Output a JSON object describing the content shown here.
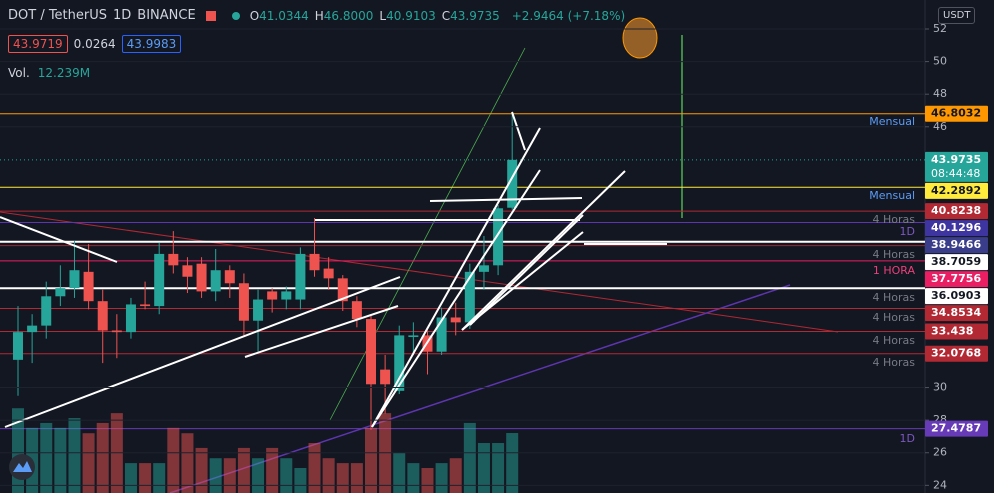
{
  "header": {
    "symbol": "DOT / TetherUS",
    "interval": "1D",
    "exchange": "BINANCE",
    "ohlc": [
      {
        "key": "O",
        "value": "41.0344"
      },
      {
        "key": "H",
        "value": "46.8000"
      },
      {
        "key": "L",
        "value": "40.9103"
      },
      {
        "key": "C",
        "value": "43.9735"
      }
    ],
    "change": "+2.9464 (+7.18%)",
    "bid": "43.9719",
    "spread": "0.0264",
    "ask": "43.9983",
    "volume_label": "Vol.",
    "volume_value": "12.239M",
    "currency": "USDT"
  },
  "chart_data": {
    "type": "candlestick",
    "open": [
      31.7,
      33.4,
      33.8,
      35.6,
      36.1,
      37.1,
      35.3,
      33.5,
      33.4,
      35.1,
      35.0,
      38.2,
      37.5,
      37.6,
      35.9,
      37.2,
      36.4,
      34.1,
      35.9,
      35.4,
      35.4,
      38.2,
      37.3,
      36.7,
      35.3,
      34.2,
      31.1,
      29.8,
      33.1,
      33.2,
      32.2,
      34.3,
      34.0,
      37.1,
      37.5,
      41.0344
    ],
    "high": [
      35.0,
      34.5,
      36.5,
      37.5,
      39.0,
      38.8,
      36.0,
      34.5,
      35.5,
      36.5,
      38.9,
      39.6,
      38.0,
      38.0,
      38.5,
      37.5,
      37.0,
      36.0,
      36.1,
      36.2,
      38.6,
      40.4,
      38.0,
      36.9,
      35.6,
      34.4,
      32.0,
      33.8,
      34.0,
      33.5,
      34.9,
      35.2,
      37.6,
      39.3,
      41.2,
      46.8
    ],
    "low": [
      29.5,
      31.5,
      33.0,
      35.0,
      35.5,
      34.8,
      31.5,
      31.8,
      33.0,
      34.8,
      34.5,
      37.0,
      35.8,
      35.5,
      35.3,
      35.5,
      33.2,
      32.2,
      34.6,
      34.8,
      34.8,
      36.8,
      36.0,
      34.7,
      33.7,
      27.4,
      28.4,
      29.6,
      32.0,
      30.8,
      32.0,
      33.2,
      33.6,
      36.0,
      36.9,
      40.9103
    ],
    "close": [
      33.4,
      33.8,
      35.6,
      36.1,
      37.2,
      35.3,
      33.5,
      33.4,
      35.1,
      35.0,
      38.2,
      37.5,
      36.8,
      35.9,
      37.2,
      36.4,
      34.1,
      35.4,
      35.4,
      35.9,
      38.2,
      37.2,
      36.7,
      35.3,
      34.2,
      30.2,
      30.2,
      33.2,
      33.2,
      32.2,
      34.3,
      34.0,
      37.1,
      37.5,
      41.0,
      43.9735
    ],
    "volume": [
      17.3,
      13.3,
      14.3,
      13.3,
      15.3,
      12.2,
      14.3,
      16.3,
      6.1,
      6.1,
      6.1,
      13.3,
      12.2,
      9.2,
      7.1,
      7.1,
      9.2,
      7.1,
      9.2,
      7.1,
      5.1,
      10.2,
      7.1,
      6.1,
      6.1,
      13.3,
      16.3,
      8.2,
      6.1,
      5.1,
      6.1,
      7.1,
      14.3,
      10.2,
      10.2,
      12.239
    ],
    "up_color": "#26a69a",
    "down_color": "#ef5350",
    "ylim": [
      23.53,
      53.78
    ],
    "yticks": [
      52,
      50,
      48,
      46,
      30,
      28,
      26,
      24
    ],
    "levels": [
      {
        "value": 46.8032,
        "color": "#ff9800",
        "label_bg": "#ff9800",
        "label_color": "#131722"
      },
      {
        "value": 43.9735,
        "color": "#26a69a",
        "label_bg": "#26a69a",
        "label_color": "#ffffff",
        "countdown": "08:44:48"
      },
      {
        "value": 42.2892,
        "color": "#ffeb3b",
        "label_bg": "#ffeb3b",
        "label_color": "#131722"
      },
      {
        "value": 40.8238,
        "color": "#b22833",
        "label_bg": "#b22833",
        "label_color": "#ffffff"
      },
      {
        "value": 40.1296,
        "color": "#5e35b1",
        "label_bg": "#3f35a0",
        "label_color": "#ffffff"
      },
      {
        "value": 38.9466,
        "color": "#ffffff",
        "label_bg": "#3a3d8a",
        "label_color": "#ffffff"
      },
      {
        "value": 38.7059,
        "color": "#9c2731",
        "label_bg": "#ffffff",
        "label_color": "#131722"
      },
      {
        "value": 37.7756,
        "color": "#e91e63",
        "label_bg": "#e91e63",
        "label_color": "#ffffff"
      },
      {
        "value": 36.0903,
        "color": "#ffffff",
        "label_bg": "#ffffff",
        "label_color": "#131722"
      },
      {
        "value": 34.8534,
        "color": "#b22833",
        "label_bg": "#b22833",
        "label_color": "#ffffff"
      },
      {
        "value": 33.438,
        "color": "#b22833",
        "label_bg": "#b22833",
        "label_color": "#ffffff"
      },
      {
        "value": 32.0768,
        "color": "#b22833",
        "label_bg": "#b22833",
        "label_color": "#ffffff"
      },
      {
        "value": 27.4787,
        "color": "#673ab7",
        "label_bg": "#673ab7",
        "label_color": "#ffffff"
      }
    ],
    "annotations": [
      {
        "text": "Mensual",
        "color": "#5b9cf6"
      },
      {
        "text": "Mensual",
        "color": "#5b9cf6"
      },
      {
        "text": "4 Horas",
        "color": "#787b86"
      },
      {
        "text": "1D",
        "color": "#7e57c2"
      },
      {
        "text": "4 Horas",
        "color": "#787b86"
      },
      {
        "text": "1 HORA",
        "color": "#ec407a"
      },
      {
        "text": "4 Horas",
        "color": "#787b86"
      },
      {
        "text": "4 Horas",
        "color": "#787b86"
      },
      {
        "text": "4 Horas",
        "color": "#787b86"
      },
      {
        "text": "4 Horas",
        "color": "#787b86"
      },
      {
        "text": "1D",
        "color": "#7e57c2"
      }
    ]
  }
}
